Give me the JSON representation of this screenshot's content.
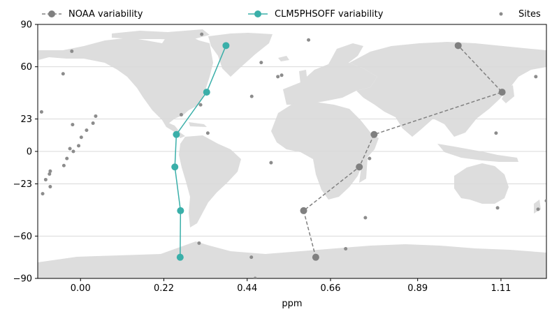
{
  "chart_data": {
    "type": "line",
    "xlabel": "ppm",
    "ylabel": "",
    "xlim": [
      -0.113,
      1.23
    ],
    "ylim": [
      -90,
      90
    ],
    "x_ticks": [
      0.0,
      0.22,
      0.44,
      0.66,
      0.89,
      1.11
    ],
    "x_tick_labels": [
      "0.00",
      "0.22",
      "0.44",
      "0.66",
      "0.89",
      "1.11"
    ],
    "y_ticks": [
      90,
      60,
      23,
      0,
      -23,
      -60,
      -90
    ],
    "y_tick_labels": [
      "90",
      "60",
      "23",
      "0",
      "−23",
      "−60",
      "−90"
    ],
    "grid": "horizontal",
    "background": "world-map",
    "legend_position": "top",
    "colors": {
      "noaa": "#808080",
      "clm": "#3aafa9",
      "sites": "#8c8c8c",
      "land": "#dddddd",
      "grid": "#d9d9d9"
    },
    "series": [
      {
        "name": "NOAA variability",
        "style": "dashed",
        "points": [
          {
            "x": 0.621,
            "y": -75
          },
          {
            "x": 0.589,
            "y": -42
          },
          {
            "x": 0.736,
            "y": -11
          },
          {
            "x": 0.775,
            "y": 12
          },
          {
            "x": 1.113,
            "y": 42
          },
          {
            "x": 0.997,
            "y": 75
          }
        ]
      },
      {
        "name": "CLM5PHSOFF variability",
        "style": "solid",
        "points": [
          {
            "x": 0.263,
            "y": -75
          },
          {
            "x": 0.264,
            "y": -42
          },
          {
            "x": 0.249,
            "y": -11
          },
          {
            "x": 0.253,
            "y": 12
          },
          {
            "x": 0.333,
            "y": 42
          },
          {
            "x": 0.384,
            "y": 75
          }
        ]
      },
      {
        "name": "Sites",
        "style": "scatter",
        "points": [
          {
            "x": -0.023,
            "y": 71
          },
          {
            "x": -0.046,
            "y": 55
          },
          {
            "x": -0.103,
            "y": 28
          },
          {
            "x": -0.021,
            "y": 19
          },
          {
            "x": 0.04,
            "y": 25
          },
          {
            "x": 0.033,
            "y": 20
          },
          {
            "x": 0.016,
            "y": 15
          },
          {
            "x": 0.002,
            "y": 10
          },
          {
            "x": -0.005,
            "y": 4
          },
          {
            "x": -0.028,
            "y": 2
          },
          {
            "x": -0.019,
            "y": 0
          },
          {
            "x": -0.036,
            "y": -5
          },
          {
            "x": -0.044,
            "y": -10
          },
          {
            "x": -0.08,
            "y": -14
          },
          {
            "x": -0.082,
            "y": -16
          },
          {
            "x": -0.092,
            "y": -20
          },
          {
            "x": -0.08,
            "y": -25
          },
          {
            "x": -0.1,
            "y": -30
          },
          {
            "x": 0.32,
            "y": 83
          },
          {
            "x": 0.602,
            "y": 79
          },
          {
            "x": 0.477,
            "y": 63
          },
          {
            "x": 0.521,
            "y": 53
          },
          {
            "x": 0.531,
            "y": 54
          },
          {
            "x": 0.452,
            "y": 39
          },
          {
            "x": 0.266,
            "y": 26
          },
          {
            "x": 0.317,
            "y": 33
          },
          {
            "x": 0.336,
            "y": 13
          },
          {
            "x": 0.503,
            "y": -8
          },
          {
            "x": 0.763,
            "y": -5
          },
          {
            "x": 0.752,
            "y": -47
          },
          {
            "x": 0.313,
            "y": -65
          },
          {
            "x": 0.451,
            "y": -75
          },
          {
            "x": 0.461,
            "y": -90
          },
          {
            "x": 0.7,
            "y": -69
          },
          {
            "x": 1.097,
            "y": 13
          },
          {
            "x": 1.101,
            "y": -40
          },
          {
            "x": 1.202,
            "y": 53
          },
          {
            "x": 1.208,
            "y": -41
          },
          {
            "x": 1.23,
            "y": -35
          }
        ]
      }
    ]
  }
}
